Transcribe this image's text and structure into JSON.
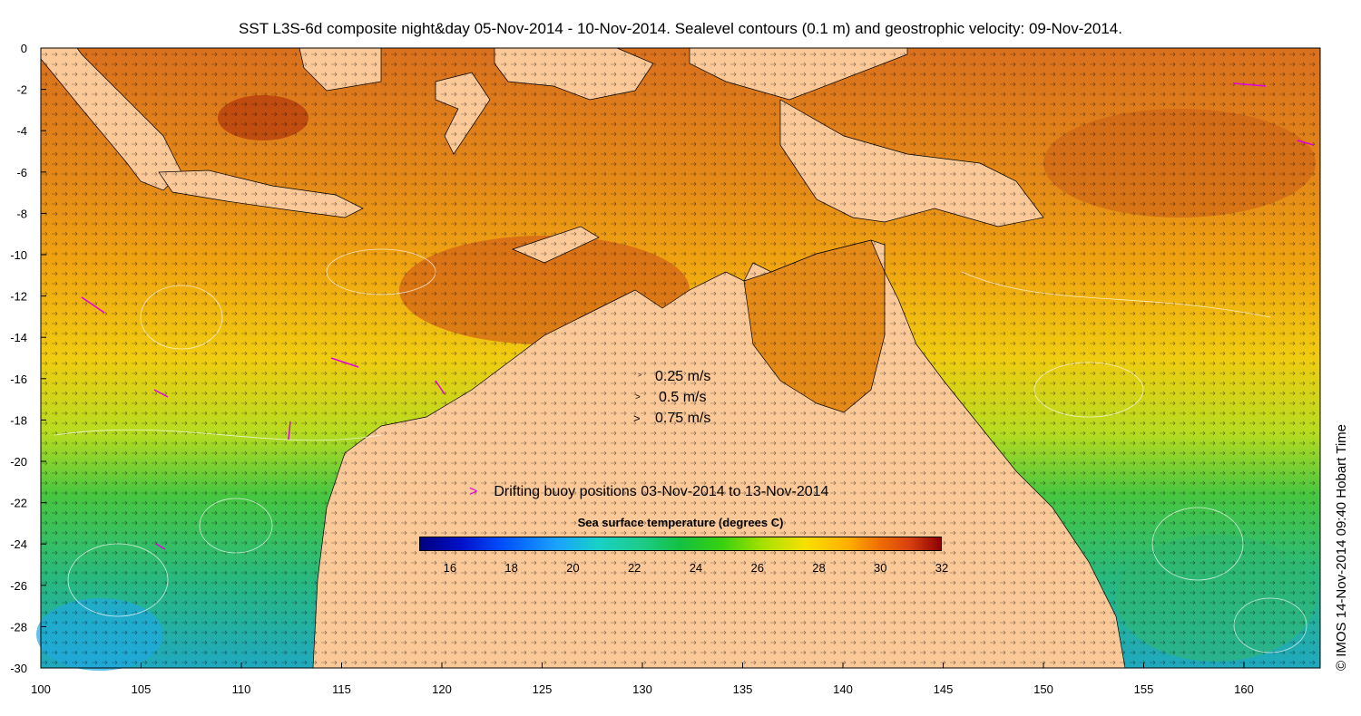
{
  "title": "SST L3S-6d composite night&day 05-Nov-2014 - 10-Nov-2014. Sealevel contours (0.1 m) and geostrophic velocity: 09-Nov-2014.",
  "axes": {
    "x_ticks": [
      "100",
      "105",
      "110",
      "115",
      "120",
      "125",
      "130",
      "135",
      "140",
      "145",
      "150",
      "155",
      "160"
    ],
    "y_ticks": [
      "0",
      "-2",
      "-4",
      "-6",
      "-8",
      "-10",
      "-12",
      "-14",
      "-16",
      "-18",
      "-20",
      "-22",
      "-24",
      "-26",
      "-28",
      "-30"
    ]
  },
  "velocity_legend": [
    {
      "symbol": ">",
      "label": "0.25 m/s"
    },
    {
      "symbol": ">",
      "label": "0.5 m/s"
    },
    {
      "symbol": ">",
      "label": "0.75 m/s"
    }
  ],
  "buoy_legend": {
    "symbol": ">",
    "label": "Drifting buoy positions 03-Nov-2014 to 13-Nov-2014"
  },
  "colorbar": {
    "title": "Sea surface temperature (degrees C)",
    "ticks": [
      "16",
      "18",
      "20",
      "22",
      "24",
      "26",
      "28",
      "30",
      "32"
    ],
    "range": [
      15,
      32
    ]
  },
  "credit": "© IMOS 14-Nov-2014 09:40 Hobart Time",
  "colors": {
    "land": "#fbc898",
    "buoy": "#e000e0",
    "warm": "#e08a1c",
    "cool": "#40c050"
  }
}
